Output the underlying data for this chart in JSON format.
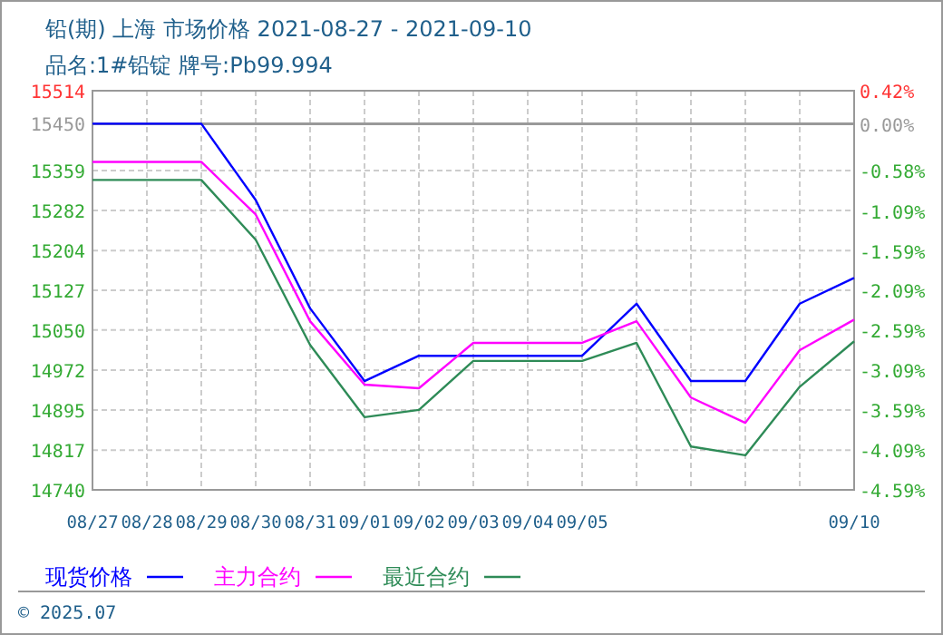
{
  "chart_data": {
    "type": "line",
    "title": "铅(期) 上海 市场价格 2021-08-27 - 2021-09-10",
    "subtitle": "品名:1#铅锭 牌号:Pb99.994",
    "categories": [
      "08/27",
      "08/28",
      "08/29",
      "08/30",
      "08/31",
      "09/01",
      "09/02",
      "09/03",
      "09/04",
      "09/05",
      null,
      null,
      null,
      null,
      "09/10"
    ],
    "series": [
      {
        "name": "现货价格",
        "color": "#0000ff",
        "values": [
          15450,
          15450,
          15450,
          15302,
          15092,
          14951,
          15000,
          15000,
          15000,
          15000,
          15101,
          14951,
          14951,
          15101,
          15151
        ]
      },
      {
        "name": "主力合约",
        "color": "#ff00ff",
        "values": [
          15376,
          15376,
          15376,
          15274,
          15067,
          14944,
          14937,
          15025,
          15025,
          15025,
          15067,
          14919,
          14870,
          15011,
          15070
        ]
      },
      {
        "name": "最近合约",
        "color": "#2e8b57",
        "values": [
          15341,
          15341,
          15341,
          15225,
          15021,
          14881,
          14895,
          14990,
          14990,
          14990,
          15025,
          14824,
          14807,
          14940,
          15028
        ]
      }
    ],
    "ylim": [
      14740,
      15514
    ],
    "yticks": [
      14740,
      14817,
      14895,
      14972,
      15050,
      15127,
      15204,
      15282,
      15359,
      15450,
      15514
    ],
    "y2lim": [
      -4.59,
      0.42
    ],
    "y2ticks": [
      {
        "value": -4.59,
        "label": "-4.59%"
      },
      {
        "value": -4.09,
        "label": "-4.09%"
      },
      {
        "value": -3.59,
        "label": "-3.59%"
      },
      {
        "value": -3.09,
        "label": "-3.09%"
      },
      {
        "value": -2.59,
        "label": "-2.59%"
      },
      {
        "value": -2.09,
        "label": "-2.09%"
      },
      {
        "value": -1.59,
        "label": "-1.59%"
      },
      {
        "value": -1.09,
        "label": "-1.09%"
      },
      {
        "value": -0.58,
        "label": "-0.58%"
      },
      {
        "value": 0,
        "label": "0.00%"
      },
      {
        "value": 0.42,
        "label": "0.42%"
      }
    ],
    "ref_lines": [
      {
        "axis": "y",
        "value": 15450,
        "color": "#999999"
      }
    ],
    "grid": true,
    "legend": "bottom",
    "annotations": [
      "© 2025.07"
    ]
  }
}
